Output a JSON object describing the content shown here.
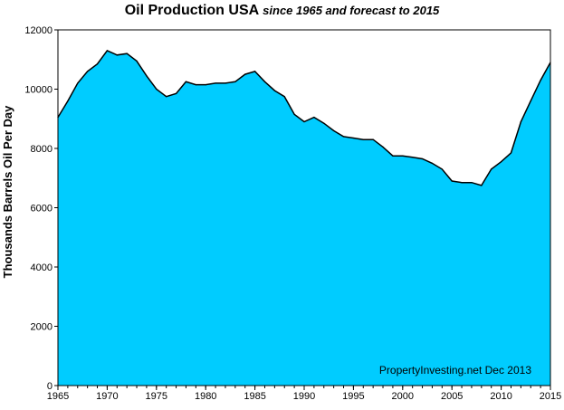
{
  "chart_data": {
    "type": "area",
    "title": "Oil Production USA",
    "subtitle": "since 1965 and forecast  to 2015",
    "xlabel": "",
    "ylabel": "Thousands Barrels Oil Per Day",
    "xlim": [
      1965,
      2015
    ],
    "ylim": [
      0,
      12000
    ],
    "x_ticks": [
      1965,
      1970,
      1975,
      1980,
      1985,
      1990,
      1995,
      2000,
      2005,
      2010,
      2015
    ],
    "y_ticks": [
      0,
      2000,
      4000,
      6000,
      8000,
      10000,
      12000
    ],
    "grid": false,
    "legend": "none",
    "annotation": "PropertyInvesting.net  Dec 2013",
    "fill_color": "#00ccff",
    "line_color": "#000000",
    "x": [
      1965,
      1966,
      1967,
      1968,
      1969,
      1970,
      1971,
      1972,
      1973,
      1974,
      1975,
      1976,
      1977,
      1978,
      1979,
      1980,
      1981,
      1982,
      1983,
      1984,
      1985,
      1986,
      1987,
      1988,
      1989,
      1990,
      1991,
      1992,
      1993,
      1994,
      1995,
      1996,
      1997,
      1998,
      1999,
      2000,
      2001,
      2002,
      2003,
      2004,
      2005,
      2006,
      2007,
      2008,
      2009,
      2010,
      2011,
      2012,
      2013,
      2014,
      2015
    ],
    "values": [
      9050,
      9600,
      10200,
      10600,
      10850,
      11300,
      11150,
      11200,
      10950,
      10450,
      10000,
      9750,
      9850,
      10250,
      10150,
      10150,
      10200,
      10200,
      10250,
      10500,
      10600,
      10250,
      9950,
      9750,
      9150,
      8900,
      9050,
      8850,
      8600,
      8400,
      8350,
      8300,
      8300,
      8050,
      7750,
      7750,
      7700,
      7650,
      7500,
      7300,
      6900,
      6850,
      6850,
      6750,
      7300,
      7550,
      7850,
      8900,
      9600,
      10300,
      10900
    ]
  }
}
